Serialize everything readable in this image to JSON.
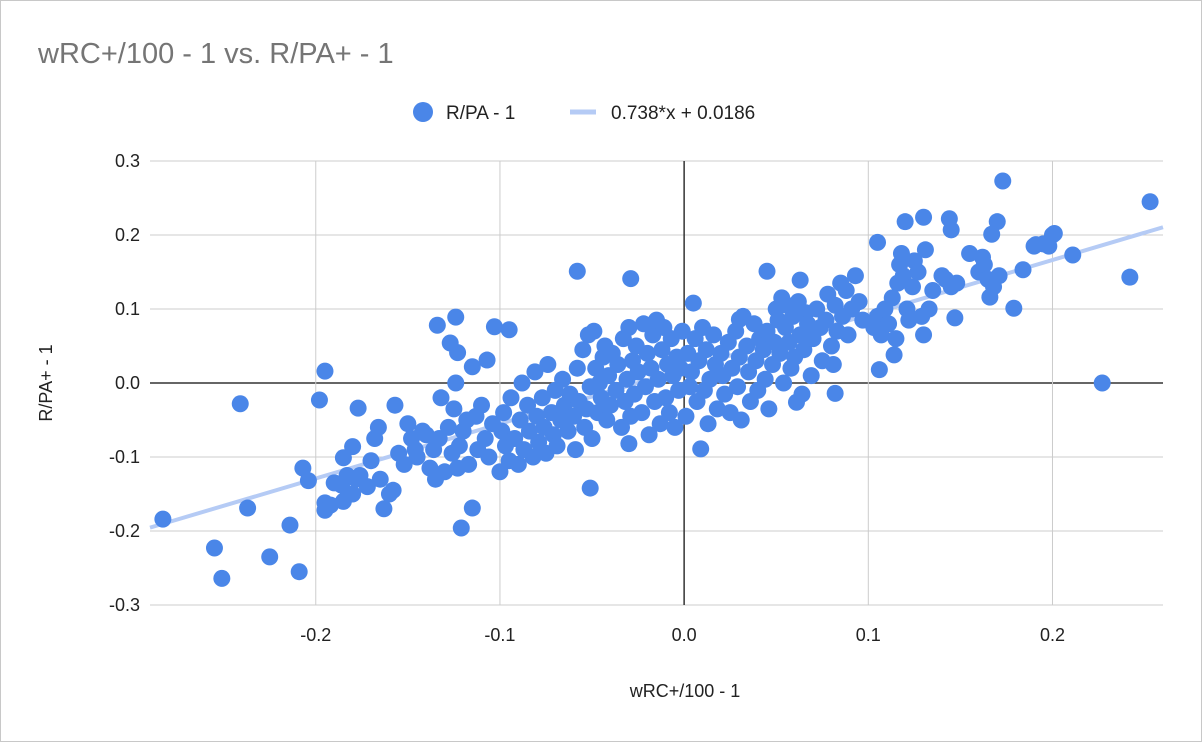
{
  "chart_data": {
    "type": "scatter",
    "title": "wRC+/100 - 1 vs. R/PA+ - 1",
    "xlabel": "wRC+/100 - 1",
    "ylabel": "R/PA+ - 1",
    "xlim": [
      -0.29,
      0.26
    ],
    "ylim": [
      -0.3,
      0.3
    ],
    "x_ticks": [
      "-0.2",
      "-0.1",
      "0.0",
      "0.1",
      "0.2"
    ],
    "x_tick_values": [
      -0.2,
      -0.1,
      0.0,
      0.1,
      0.2
    ],
    "y_ticks": [
      "0.3",
      "0.2",
      "0.1",
      "0.0",
      "-0.1",
      "-0.2",
      "-0.3"
    ],
    "y_tick_values": [
      0.3,
      0.2,
      0.1,
      0.0,
      -0.1,
      -0.2,
      -0.3
    ],
    "grid": true,
    "legend_position": "top",
    "colors": {
      "points": "#4a86e8",
      "trendline": "#b5cbf5",
      "title": "#757575"
    },
    "series": [
      {
        "name": "R/PA - 1",
        "points": [
          [
            -0.283,
            -0.184
          ],
          [
            -0.255,
            -0.223
          ],
          [
            -0.251,
            -0.264
          ],
          [
            -0.237,
            -0.169
          ],
          [
            -0.241,
            -0.028
          ],
          [
            -0.225,
            -0.235
          ],
          [
            -0.214,
            -0.192
          ],
          [
            -0.209,
            -0.255
          ],
          [
            -0.207,
            -0.115
          ],
          [
            -0.204,
            -0.132
          ],
          [
            -0.198,
            -0.023
          ],
          [
            -0.195,
            0.016
          ],
          [
            -0.195,
            -0.162
          ],
          [
            -0.195,
            -0.172
          ],
          [
            -0.186,
            -0.138
          ],
          [
            -0.185,
            -0.101
          ],
          [
            -0.18,
            -0.086
          ],
          [
            -0.177,
            -0.034
          ],
          [
            -0.134,
            0.078
          ],
          [
            -0.124,
            0.089
          ],
          [
            -0.127,
            0.054
          ],
          [
            -0.123,
            0.041
          ],
          [
            -0.121,
            -0.196
          ],
          [
            -0.115,
            -0.169
          ],
          [
            -0.107,
            0.031
          ],
          [
            -0.103,
            0.076
          ],
          [
            -0.095,
            0.072
          ],
          [
            -0.058,
            0.151
          ],
          [
            -0.029,
            0.141
          ],
          [
            -0.051,
            -0.142
          ],
          [
            -0.03,
            -0.082
          ],
          [
            0.005,
            0.108
          ],
          [
            0.009,
            -0.089
          ],
          [
            0.03,
            0.086
          ],
          [
            0.045,
            0.151
          ],
          [
            0.063,
            0.139
          ],
          [
            0.105,
            0.19
          ],
          [
            0.106,
            0.018
          ],
          [
            0.12,
            0.218
          ],
          [
            0.13,
            0.224
          ],
          [
            0.144,
            0.222
          ],
          [
            0.145,
            0.207
          ],
          [
            0.173,
            0.273
          ],
          [
            0.17,
            0.218
          ],
          [
            0.167,
            0.201
          ],
          [
            0.191,
            0.187
          ],
          [
            0.201,
            0.202
          ],
          [
            0.198,
            0.185
          ],
          [
            0.211,
            0.173
          ],
          [
            0.227,
            0.0
          ],
          [
            0.242,
            0.143
          ],
          [
            0.253,
            0.245
          ],
          [
            0.179,
            0.101
          ],
          [
            0.184,
            0.153
          ],
          [
            0.166,
            0.116
          ],
          [
            0.147,
            0.088
          ],
          [
            0.13,
            0.065
          ],
          [
            0.114,
            0.038
          ],
          [
            0.082,
            -0.014
          ],
          [
            0.061,
            -0.026
          ],
          [
            -0.192,
            -0.165
          ],
          [
            -0.19,
            -0.135
          ],
          [
            -0.185,
            -0.16
          ],
          [
            -0.183,
            -0.125
          ],
          [
            -0.18,
            -0.15
          ],
          [
            -0.178,
            -0.13
          ],
          [
            -0.176,
            -0.125
          ],
          [
            -0.172,
            -0.14
          ],
          [
            -0.17,
            -0.105
          ],
          [
            -0.168,
            -0.075
          ],
          [
            -0.166,
            -0.06
          ],
          [
            -0.165,
            -0.13
          ],
          [
            -0.163,
            -0.17
          ],
          [
            -0.16,
            -0.15
          ],
          [
            -0.158,
            -0.145
          ],
          [
            -0.157,
            -0.03
          ],
          [
            -0.155,
            -0.095
          ],
          [
            -0.152,
            -0.11
          ],
          [
            -0.15,
            -0.055
          ],
          [
            -0.148,
            -0.075
          ],
          [
            -0.146,
            -0.09
          ],
          [
            -0.145,
            -0.1
          ],
          [
            -0.142,
            -0.065
          ],
          [
            -0.14,
            -0.07
          ],
          [
            -0.138,
            -0.115
          ],
          [
            -0.136,
            -0.09
          ],
          [
            -0.135,
            -0.13
          ],
          [
            -0.133,
            -0.075
          ],
          [
            -0.132,
            -0.02
          ],
          [
            -0.13,
            -0.12
          ],
          [
            -0.128,
            -0.06
          ],
          [
            -0.126,
            -0.095
          ],
          [
            -0.125,
            -0.035
          ],
          [
            -0.124,
            0.0
          ],
          [
            -0.123,
            -0.115
          ],
          [
            -0.122,
            -0.085
          ],
          [
            -0.12,
            -0.065
          ],
          [
            -0.118,
            -0.05
          ],
          [
            -0.117,
            -0.11
          ],
          [
            -0.115,
            0.022
          ],
          [
            -0.113,
            -0.045
          ],
          [
            -0.112,
            -0.09
          ],
          [
            -0.11,
            -0.03
          ],
          [
            -0.108,
            -0.075
          ],
          [
            -0.106,
            -0.1
          ],
          [
            -0.104,
            -0.055
          ],
          [
            -0.1,
            -0.12
          ],
          [
            -0.099,
            -0.065
          ],
          [
            -0.098,
            -0.04
          ],
          [
            -0.097,
            -0.085
          ],
          [
            -0.095,
            -0.105
          ],
          [
            -0.094,
            -0.02
          ],
          [
            -0.092,
            -0.075
          ],
          [
            -0.09,
            -0.11
          ],
          [
            -0.089,
            -0.05
          ],
          [
            -0.088,
            0.0
          ],
          [
            -0.087,
            -0.09
          ],
          [
            -0.085,
            -0.03
          ],
          [
            -0.084,
            -0.065
          ],
          [
            -0.082,
            -0.1
          ],
          [
            -0.081,
            0.015
          ],
          [
            -0.08,
            -0.045
          ],
          [
            -0.079,
            -0.08
          ],
          [
            -0.077,
            -0.02
          ],
          [
            -0.076,
            -0.06
          ],
          [
            -0.075,
            -0.095
          ],
          [
            -0.074,
            0.025
          ],
          [
            -0.072,
            -0.04
          ],
          [
            -0.071,
            -0.07
          ],
          [
            -0.07,
            -0.01
          ],
          [
            -0.069,
            -0.085
          ],
          [
            -0.067,
            -0.05
          ],
          [
            -0.066,
            0.005
          ],
          [
            -0.065,
            -0.03
          ],
          [
            -0.063,
            -0.065
          ],
          [
            -0.062,
            -0.015
          ],
          [
            -0.06,
            -0.045
          ],
          [
            -0.059,
            -0.09
          ],
          [
            -0.058,
            0.02
          ],
          [
            -0.057,
            -0.025
          ],
          [
            -0.055,
            0.045
          ],
          [
            -0.054,
            -0.06
          ],
          [
            -0.053,
            -0.035
          ],
          [
            -0.052,
            0.065
          ],
          [
            -0.051,
            -0.005
          ],
          [
            -0.05,
            -0.075
          ],
          [
            -0.049,
            0.07
          ],
          [
            -0.048,
            0.02
          ],
          [
            -0.047,
            -0.04
          ],
          [
            -0.046,
            0.0
          ],
          [
            -0.045,
            -0.02
          ],
          [
            -0.044,
            0.035
          ],
          [
            -0.043,
            0.05
          ],
          [
            -0.042,
            -0.05
          ],
          [
            -0.041,
            0.01
          ],
          [
            -0.04,
            -0.03
          ],
          [
            -0.039,
            0.04
          ],
          [
            -0.037,
            -0.01
          ],
          [
            -0.036,
            0.025
          ],
          [
            -0.034,
            -0.06
          ],
          [
            -0.033,
            0.06
          ],
          [
            -0.032,
            -0.025
          ],
          [
            -0.031,
            0.005
          ],
          [
            -0.03,
            0.075
          ],
          [
            -0.029,
            -0.045
          ],
          [
            -0.028,
            0.03
          ],
          [
            -0.027,
            -0.015
          ],
          [
            -0.026,
            0.05
          ],
          [
            -0.025,
            0.015
          ],
          [
            -0.023,
            -0.04
          ],
          [
            -0.022,
            0.08
          ],
          [
            -0.021,
            -0.005
          ],
          [
            -0.02,
            0.04
          ],
          [
            -0.019,
            -0.07
          ],
          [
            -0.018,
            0.02
          ],
          [
            -0.017,
            0.065
          ],
          [
            -0.016,
            -0.025
          ],
          [
            -0.015,
            0.085
          ],
          [
            -0.014,
            0.005
          ],
          [
            -0.013,
            -0.055
          ],
          [
            -0.012,
            0.045
          ],
          [
            -0.011,
            0.075
          ],
          [
            -0.01,
            -0.02
          ],
          [
            -0.009,
            0.025
          ],
          [
            -0.008,
            -0.04
          ],
          [
            -0.007,
            0.06
          ],
          [
            -0.006,
            0.01
          ],
          [
            -0.005,
            -0.06
          ],
          [
            -0.004,
            0.035
          ],
          [
            -0.003,
            -0.01
          ],
          [
            -0.002,
            0.02
          ],
          [
            -0.001,
            0.07
          ],
          [
            0.001,
            -0.045
          ],
          [
            0.002,
            0.04
          ],
          [
            0.003,
            -0.005
          ],
          [
            0.004,
            0.015
          ],
          [
            0.006,
            0.06
          ],
          [
            0.007,
            -0.025
          ],
          [
            0.008,
            0.03
          ],
          [
            0.01,
            0.075
          ],
          [
            0.011,
            -0.01
          ],
          [
            0.012,
            0.045
          ],
          [
            0.013,
            -0.055
          ],
          [
            0.014,
            0.005
          ],
          [
            0.016,
            0.065
          ],
          [
            0.017,
            0.025
          ],
          [
            0.018,
            -0.035
          ],
          [
            0.02,
            0.04
          ],
          [
            0.021,
            0.01
          ],
          [
            0.022,
            -0.015
          ],
          [
            0.024,
            0.055
          ],
          [
            0.025,
            -0.04
          ],
          [
            0.026,
            0.02
          ],
          [
            0.028,
            0.07
          ],
          [
            0.029,
            -0.005
          ],
          [
            0.03,
            0.035
          ],
          [
            0.031,
            -0.05
          ],
          [
            0.032,
            0.09
          ],
          [
            0.034,
            0.05
          ],
          [
            0.035,
            0.015
          ],
          [
            0.036,
            -0.025
          ],
          [
            0.038,
            0.08
          ],
          [
            0.039,
            0.03
          ],
          [
            0.04,
            -0.01
          ],
          [
            0.041,
            0.06
          ],
          [
            0.043,
            0.045
          ],
          [
            0.044,
            0.005
          ],
          [
            0.045,
            0.07
          ],
          [
            0.046,
            -0.035
          ],
          [
            0.048,
            0.025
          ],
          [
            0.049,
            0.055
          ],
          [
            0.05,
            0.1
          ],
          [
            0.051,
            0.085
          ],
          [
            0.052,
            0.04
          ],
          [
            0.053,
            0.115
          ],
          [
            0.054,
            0.0
          ],
          [
            0.055,
            0.075
          ],
          [
            0.056,
            0.105
          ],
          [
            0.057,
            0.055
          ],
          [
            0.058,
            0.02
          ],
          [
            0.059,
            0.09
          ],
          [
            0.06,
            0.035
          ],
          [
            0.062,
            0.11
          ],
          [
            0.063,
            0.065
          ],
          [
            0.064,
            -0.015
          ],
          [
            0.065,
            0.045
          ],
          [
            0.066,
            0.095
          ],
          [
            0.067,
            0.08
          ],
          [
            0.069,
            0.01
          ],
          [
            0.07,
            0.06
          ],
          [
            0.072,
            0.1
          ],
          [
            0.074,
            0.075
          ],
          [
            0.075,
            0.03
          ],
          [
            0.077,
            0.085
          ],
          [
            0.078,
            0.12
          ],
          [
            0.08,
            0.05
          ],
          [
            0.081,
            0.025
          ],
          [
            0.082,
            0.105
          ],
          [
            0.083,
            0.07
          ],
          [
            0.085,
            0.135
          ],
          [
            0.086,
            0.09
          ],
          [
            0.088,
            0.125
          ],
          [
            0.089,
            0.065
          ],
          [
            0.091,
            0.1
          ],
          [
            0.093,
            0.145
          ],
          [
            0.095,
            0.11
          ],
          [
            0.097,
            0.085
          ],
          [
            0.103,
            0.075
          ],
          [
            0.105,
            0.09
          ],
          [
            0.107,
            0.065
          ],
          [
            0.109,
            0.1
          ],
          [
            0.111,
            0.08
          ],
          [
            0.113,
            0.115
          ],
          [
            0.115,
            0.06
          ],
          [
            0.116,
            0.135
          ],
          [
            0.117,
            0.16
          ],
          [
            0.118,
            0.175
          ],
          [
            0.119,
            0.145
          ],
          [
            0.121,
            0.1
          ],
          [
            0.122,
            0.085
          ],
          [
            0.124,
            0.13
          ],
          [
            0.125,
            0.165
          ],
          [
            0.127,
            0.15
          ],
          [
            0.129,
            0.09
          ],
          [
            0.131,
            0.18
          ],
          [
            0.133,
            0.1
          ],
          [
            0.135,
            0.125
          ],
          [
            0.14,
            0.145
          ],
          [
            0.142,
            0.14
          ],
          [
            0.145,
            0.13
          ],
          [
            0.148,
            0.135
          ],
          [
            0.155,
            0.175
          ],
          [
            0.16,
            0.15
          ],
          [
            0.162,
            0.17
          ],
          [
            0.163,
            0.16
          ],
          [
            0.165,
            0.14
          ],
          [
            0.168,
            0.13
          ],
          [
            0.171,
            0.145
          ],
          [
            0.19,
            0.185
          ],
          [
            0.195,
            0.188
          ],
          [
            0.2,
            0.2
          ]
        ]
      }
    ],
    "trendline": {
      "label": "0.738*x + 0.0186",
      "slope": 0.738,
      "intercept": 0.0186
    }
  }
}
